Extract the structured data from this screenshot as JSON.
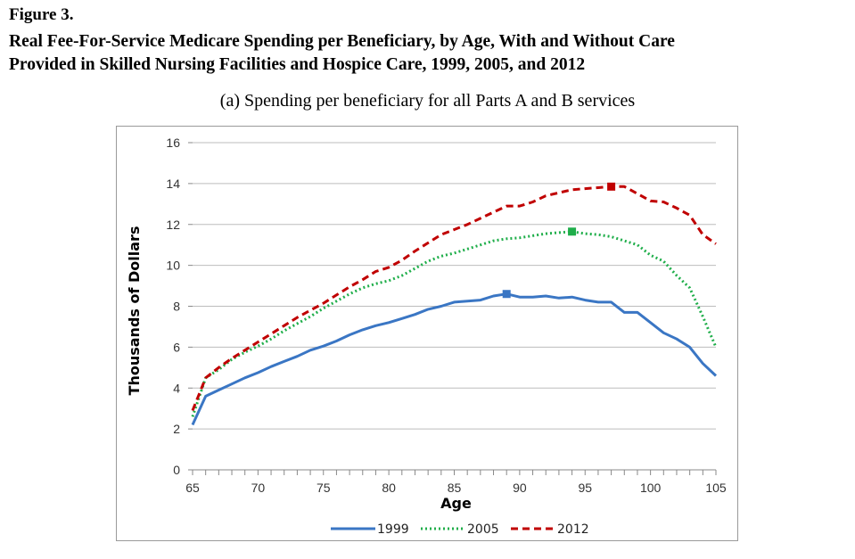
{
  "figure": {
    "label": "Figure 3.",
    "title_line1": "Real Fee-For-Service Medicare Spending per Beneficiary, by Age, With and Without Care",
    "title_line2": "Provided in Skilled Nursing Facilities and Hospice Care, 1999, 2005, and 2012",
    "subtitle": "(a) Spending per beneficiary for all Parts A and B services"
  },
  "chart_data": {
    "type": "line",
    "xlabel": "Age",
    "ylabel": "Thousands of Dollars",
    "xlim": [
      65,
      105
    ],
    "ylim": [
      0,
      16
    ],
    "xticks": [
      "65",
      "70",
      "75",
      "80",
      "85",
      "90",
      "95",
      "100",
      "105"
    ],
    "yticks": [
      "0",
      "2",
      "4",
      "6",
      "8",
      "10",
      "12",
      "14",
      "16"
    ],
    "grid": "horizontal",
    "legend_position": "bottom",
    "x": [
      65,
      66,
      67,
      68,
      69,
      70,
      71,
      72,
      73,
      74,
      75,
      76,
      77,
      78,
      79,
      80,
      81,
      82,
      83,
      84,
      85,
      86,
      87,
      88,
      89,
      90,
      91,
      92,
      93,
      94,
      95,
      96,
      97,
      98,
      99,
      100,
      101,
      102,
      103,
      104,
      105
    ],
    "series": [
      {
        "name": "1999",
        "color": "#3a76c4",
        "style": "solid",
        "marker_x": 89,
        "values": [
          2.2,
          3.6,
          3.9,
          4.2,
          4.5,
          4.75,
          5.05,
          5.3,
          5.55,
          5.85,
          6.05,
          6.3,
          6.6,
          6.85,
          7.05,
          7.2,
          7.4,
          7.6,
          7.85,
          8.0,
          8.2,
          8.25,
          8.3,
          8.5,
          8.6,
          8.45,
          8.45,
          8.5,
          8.4,
          8.45,
          8.3,
          8.2,
          8.2,
          7.7,
          7.7,
          7.2,
          6.7,
          6.4,
          6.0,
          5.2,
          4.6
        ]
      },
      {
        "name": "2005",
        "color": "#1fae4a",
        "style": "dotted",
        "marker_x": 94,
        "values": [
          2.6,
          4.5,
          4.9,
          5.4,
          5.75,
          6.05,
          6.4,
          6.8,
          7.15,
          7.5,
          7.9,
          8.25,
          8.6,
          8.9,
          9.1,
          9.25,
          9.5,
          9.85,
          10.2,
          10.45,
          10.6,
          10.8,
          11.0,
          11.2,
          11.3,
          11.35,
          11.45,
          11.55,
          11.6,
          11.65,
          11.55,
          11.5,
          11.4,
          11.2,
          11.0,
          10.5,
          10.2,
          9.5,
          8.9,
          7.5,
          6.0
        ]
      },
      {
        "name": "2012",
        "color": "#c00000",
        "style": "dashed",
        "marker_x": 97,
        "values": [
          2.9,
          4.5,
          5.0,
          5.45,
          5.85,
          6.25,
          6.65,
          7.05,
          7.45,
          7.8,
          8.15,
          8.55,
          8.95,
          9.3,
          9.7,
          9.9,
          10.25,
          10.7,
          11.1,
          11.5,
          11.75,
          12.0,
          12.3,
          12.6,
          12.9,
          12.9,
          13.1,
          13.4,
          13.55,
          13.7,
          13.75,
          13.8,
          13.85,
          13.85,
          13.5,
          13.15,
          13.1,
          12.8,
          12.45,
          11.5,
          11.05
        ]
      }
    ]
  }
}
